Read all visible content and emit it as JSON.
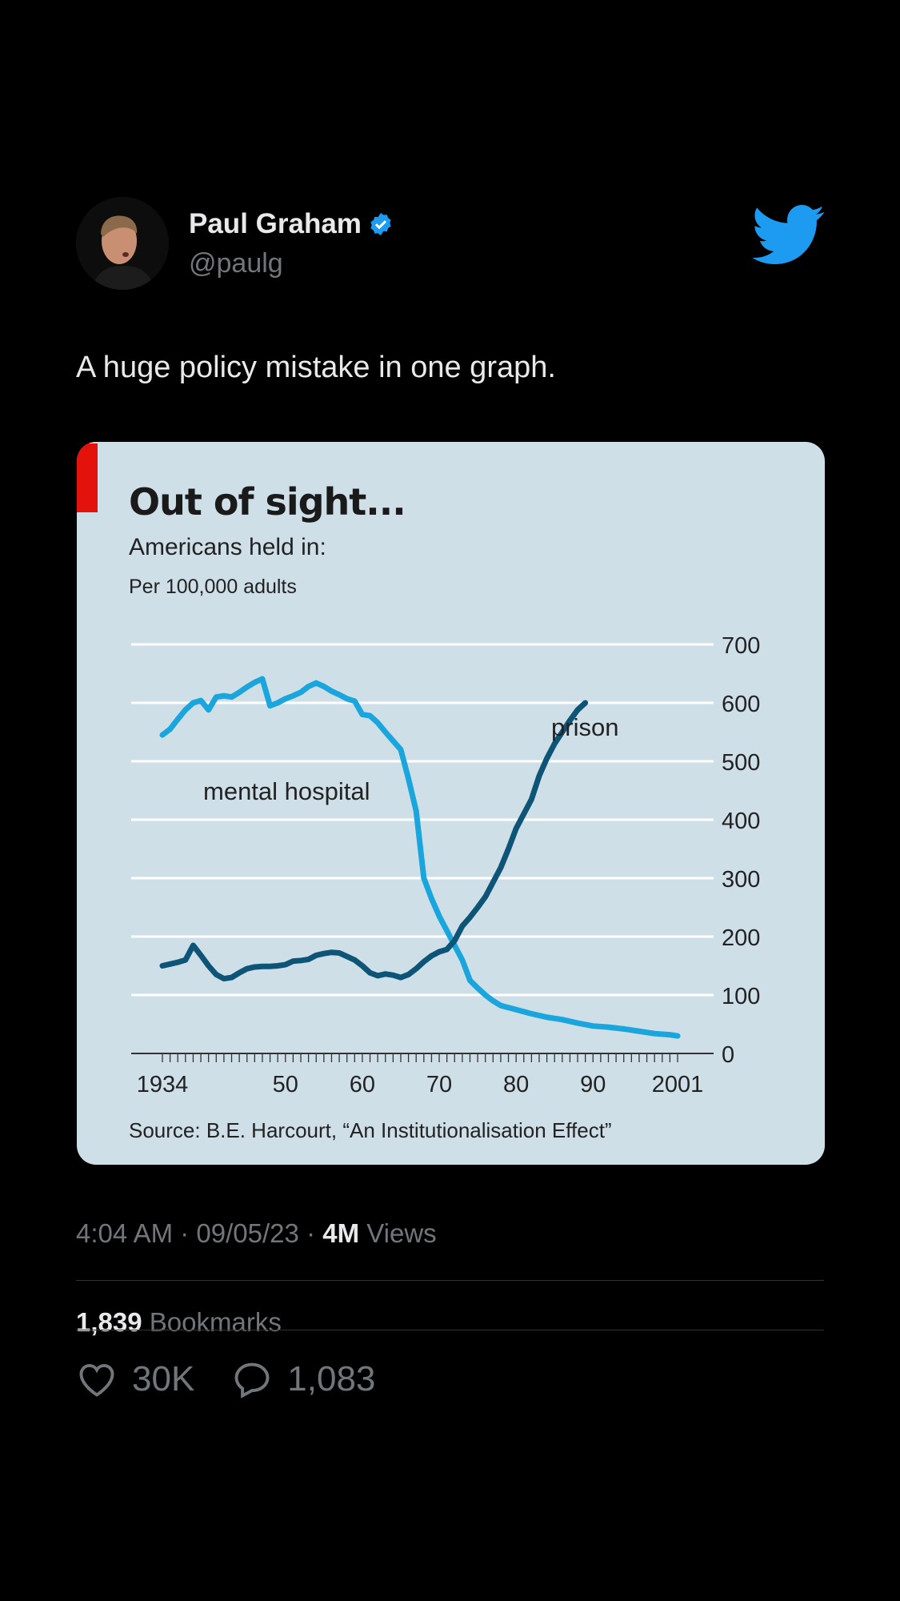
{
  "author": {
    "name": "Paul Graham",
    "handle": "@paulg",
    "verified": true,
    "verified_color": "#1d9bf0"
  },
  "brand_icon": "twitter-bird-icon",
  "brand_color": "#1d9bf0",
  "tweet": {
    "text": "A huge policy mistake in one graph."
  },
  "meta": {
    "time": "4:04 AM",
    "date": "09/05/23",
    "views_count": "4M",
    "views_label": "Views",
    "separator": "·"
  },
  "stats": {
    "bookmarks_count": "1,839",
    "bookmarks_label": "Bookmarks",
    "likes": "30K",
    "replies": "1,083"
  },
  "chart_data": {
    "type": "line",
    "title": "Out of sight...",
    "subtitle": "Americans held in:",
    "unit": "Per 100,000 adults",
    "source": "Source: B.E. Harcourt, “An Institutionalisation Effect”",
    "xlim": [
      1934,
      2001
    ],
    "ylim": [
      0,
      700
    ],
    "x_tick_labels": [
      {
        "x": 1934,
        "label": "1934"
      },
      {
        "x": 1950,
        "label": "50"
      },
      {
        "x": 1960,
        "label": "60"
      },
      {
        "x": 1970,
        "label": "70"
      },
      {
        "x": 1980,
        "label": "80"
      },
      {
        "x": 1990,
        "label": "90"
      },
      {
        "x": 2001,
        "label": "2001"
      }
    ],
    "y_ticks": [
      0,
      100,
      200,
      300,
      400,
      500,
      600,
      700
    ],
    "y_axis_side": "right",
    "grid": true,
    "accent_color": "#e3120b",
    "series": [
      {
        "name": "mental hospital",
        "color": "#1aa5dc",
        "points": [
          [
            1934,
            545
          ],
          [
            1935,
            555
          ],
          [
            1936,
            572
          ],
          [
            1937,
            588
          ],
          [
            1938,
            600
          ],
          [
            1939,
            604
          ],
          [
            1940,
            588
          ],
          [
            1941,
            610
          ],
          [
            1942,
            612
          ],
          [
            1943,
            610
          ],
          [
            1944,
            618
          ],
          [
            1945,
            627
          ],
          [
            1946,
            635
          ],
          [
            1947,
            641
          ],
          [
            1948,
            595
          ],
          [
            1949,
            600
          ],
          [
            1950,
            607
          ],
          [
            1951,
            612
          ],
          [
            1952,
            618
          ],
          [
            1953,
            628
          ],
          [
            1954,
            634
          ],
          [
            1955,
            628
          ],
          [
            1956,
            620
          ],
          [
            1957,
            614
          ],
          [
            1958,
            607
          ],
          [
            1959,
            603
          ],
          [
            1960,
            580
          ],
          [
            1961,
            578
          ],
          [
            1962,
            566
          ],
          [
            1963,
            550
          ],
          [
            1964,
            535
          ],
          [
            1965,
            520
          ],
          [
            1966,
            470
          ],
          [
            1967,
            415
          ],
          [
            1968,
            300
          ],
          [
            1969,
            265
          ],
          [
            1970,
            235
          ],
          [
            1971,
            210
          ],
          [
            1972,
            185
          ],
          [
            1973,
            160
          ],
          [
            1974,
            125
          ],
          [
            1975,
            112
          ],
          [
            1976,
            100
          ],
          [
            1977,
            90
          ],
          [
            1978,
            82
          ],
          [
            1980,
            75
          ],
          [
            1982,
            68
          ],
          [
            1984,
            62
          ],
          [
            1986,
            58
          ],
          [
            1988,
            52
          ],
          [
            1990,
            47
          ],
          [
            1992,
            45
          ],
          [
            1994,
            42
          ],
          [
            1996,
            38
          ],
          [
            1998,
            34
          ],
          [
            2000,
            32
          ],
          [
            2001,
            30
          ]
        ]
      },
      {
        "name": "prison",
        "color": "#0d5476",
        "points": [
          [
            1934,
            150
          ],
          [
            1935,
            153
          ],
          [
            1936,
            156
          ],
          [
            1937,
            160
          ],
          [
            1938,
            185
          ],
          [
            1939,
            168
          ],
          [
            1940,
            150
          ],
          [
            1941,
            135
          ],
          [
            1942,
            128
          ],
          [
            1943,
            130
          ],
          [
            1944,
            138
          ],
          [
            1945,
            145
          ],
          [
            1946,
            148
          ],
          [
            1947,
            149
          ],
          [
            1948,
            149
          ],
          [
            1949,
            150
          ],
          [
            1950,
            152
          ],
          [
            1951,
            158
          ],
          [
            1952,
            159
          ],
          [
            1953,
            161
          ],
          [
            1954,
            168
          ],
          [
            1955,
            171
          ],
          [
            1956,
            173
          ],
          [
            1957,
            172
          ],
          [
            1958,
            166
          ],
          [
            1959,
            160
          ],
          [
            1960,
            150
          ],
          [
            1961,
            138
          ],
          [
            1962,
            133
          ],
          [
            1963,
            136
          ],
          [
            1964,
            134
          ],
          [
            1965,
            130
          ],
          [
            1966,
            135
          ],
          [
            1967,
            145
          ],
          [
            1968,
            157
          ],
          [
            1969,
            167
          ],
          [
            1970,
            174
          ],
          [
            1971,
            178
          ],
          [
            1972,
            193
          ],
          [
            1973,
            218
          ],
          [
            1974,
            233
          ],
          [
            1975,
            250
          ],
          [
            1976,
            268
          ],
          [
            1977,
            293
          ],
          [
            1978,
            318
          ],
          [
            1979,
            350
          ],
          [
            1980,
            385
          ],
          [
            1981,
            410
          ],
          [
            1982,
            435
          ],
          [
            1983,
            475
          ],
          [
            1984,
            505
          ],
          [
            1985,
            530
          ],
          [
            1986,
            550
          ],
          [
            1987,
            570
          ],
          [
            1988,
            588
          ],
          [
            1989,
            600
          ]
        ]
      }
    ],
    "annotations": [
      {
        "text": "mental hospital",
        "series": "mental hospital"
      },
      {
        "text": "prison",
        "series": "prison"
      }
    ]
  }
}
